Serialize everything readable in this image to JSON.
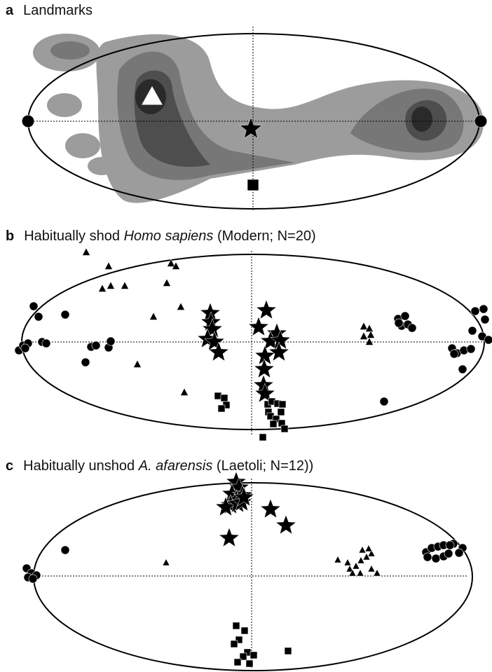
{
  "panels": [
    {
      "letter": "a",
      "title": [
        "Landmarks"
      ]
    },
    {
      "letter": "b",
      "title": [
        "Habitually shod",
        "Homo sapiens",
        "(Modern; N=20)"
      ]
    },
    {
      "letter": "c",
      "title": [
        "Habitually unshod",
        "A. afarensis",
        "(Laetoli; N=12))"
      ]
    }
  ]
}
